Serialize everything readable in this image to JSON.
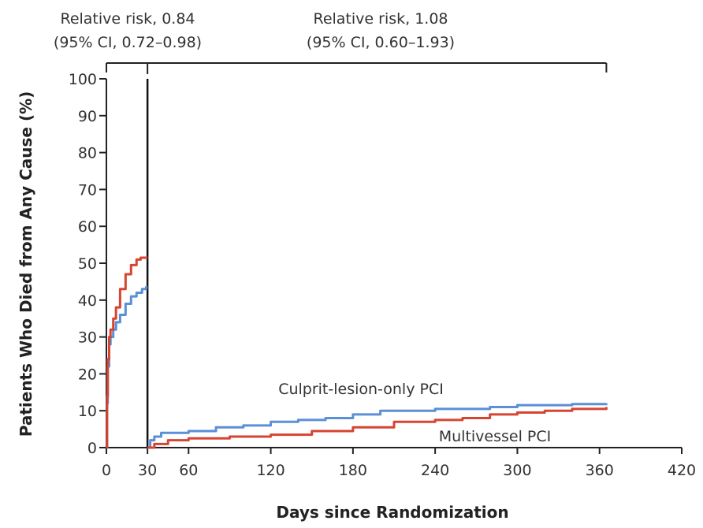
{
  "chart_data": {
    "type": "line",
    "xlabel": "Days since Randomization",
    "ylabel": "Patients Who Died from Any Cause (%)",
    "xlim": [
      0,
      420
    ],
    "ylim": [
      0,
      100
    ],
    "x_ticks": [
      "0",
      "30",
      "60",
      "120",
      "180",
      "240",
      "300",
      "360",
      "420"
    ],
    "x_tick_values": [
      0,
      30,
      60,
      120,
      180,
      240,
      300,
      360,
      420
    ],
    "y_ticks": [
      "0",
      "10",
      "20",
      "30",
      "40",
      "50",
      "60",
      "70",
      "80",
      "90",
      "100"
    ],
    "y_tick_values": [
      0,
      10,
      20,
      30,
      40,
      50,
      60,
      70,
      80,
      90,
      100
    ],
    "landmark_day": 30,
    "bracket_end_day": 365,
    "annotations": {
      "left_line1": "Relative risk, 0.84",
      "left_line2": "(95% CI, 0.72–0.98)",
      "right_line1": "Relative risk, 1.08",
      "right_line2": "(95% CI, 0.60–1.93)"
    },
    "series": [
      {
        "name": "Culprit-lesion-only PCI",
        "color": "#5b8fd6",
        "segments": [
          {
            "x": [
              0,
              0.5,
              1,
              2,
              3,
              5,
              7,
              10,
              14,
              18,
              22,
              26,
              29,
              30
            ],
            "y": [
              0,
              12,
              22,
              28,
              30,
              32,
              34,
              36,
              39,
              41,
              42,
              43,
              43.5,
              43.5
            ]
          },
          {
            "x": [
              30,
              32,
              35,
              40,
              60,
              80,
              100,
              120,
              140,
              160,
              180,
              200,
              240,
              280,
              300,
              340,
              365
            ],
            "y": [
              0,
              2,
              3,
              4,
              4.5,
              5.5,
              6,
              7,
              7.5,
              8,
              9,
              10,
              10.5,
              11,
              11.5,
              11.8,
              12
            ]
          }
        ]
      },
      {
        "name": "Multivessel PCI",
        "color": "#d64532",
        "segments": [
          {
            "x": [
              0,
              0.5,
              1,
              2,
              3,
              5,
              7,
              10,
              14,
              18,
              22,
              25,
              29,
              30
            ],
            "y": [
              0,
              14,
              24,
              30,
              32,
              35,
              38,
              43,
              47,
              49.5,
              51,
              51.5,
              51.5,
              51.5
            ]
          },
          {
            "x": [
              30,
              35,
              45,
              60,
              90,
              120,
              150,
              180,
              210,
              240,
              260,
              280,
              300,
              320,
              340,
              365
            ],
            "y": [
              0,
              1,
              2,
              2.5,
              3,
              3.5,
              4.5,
              5.5,
              7,
              7.5,
              8,
              9,
              9.5,
              10,
              10.5,
              11
            ]
          }
        ]
      }
    ],
    "labels": {
      "culprit": "Culprit-lesion-only PCI",
      "multi": "Multivessel PCI"
    },
    "grid": false,
    "legend": "inline labels"
  }
}
